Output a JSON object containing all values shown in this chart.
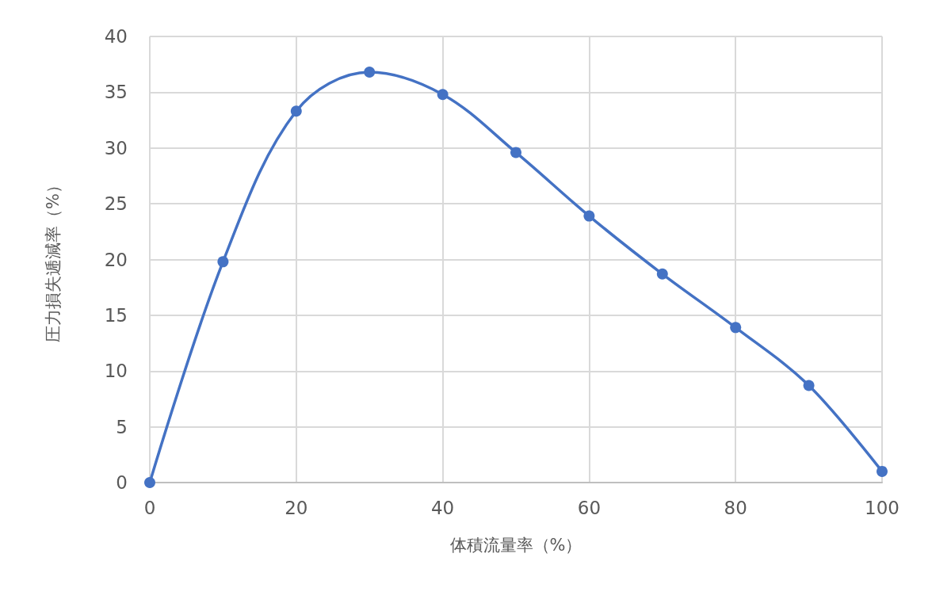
{
  "chart_data": {
    "type": "line",
    "xlabel": "体積流量率（%）",
    "ylabel": "圧力損失逓減率（%）",
    "x": [
      0,
      10,
      20,
      30,
      40,
      50,
      60,
      70,
      80,
      90,
      100
    ],
    "values": [
      0,
      19.8,
      33.3,
      36.8,
      34.8,
      29.6,
      23.9,
      18.7,
      13.9,
      8.7,
      1.0
    ],
    "color": "#4472c4",
    "marker": "circle",
    "line_style": "solid",
    "xlim": [
      0,
      100
    ],
    "xticks": [
      0,
      20,
      40,
      60,
      80,
      100
    ],
    "ylim": [
      0,
      40
    ],
    "yticks": [
      0,
      5,
      10,
      15,
      20,
      25,
      30,
      35,
      40
    ],
    "grid": true
  }
}
